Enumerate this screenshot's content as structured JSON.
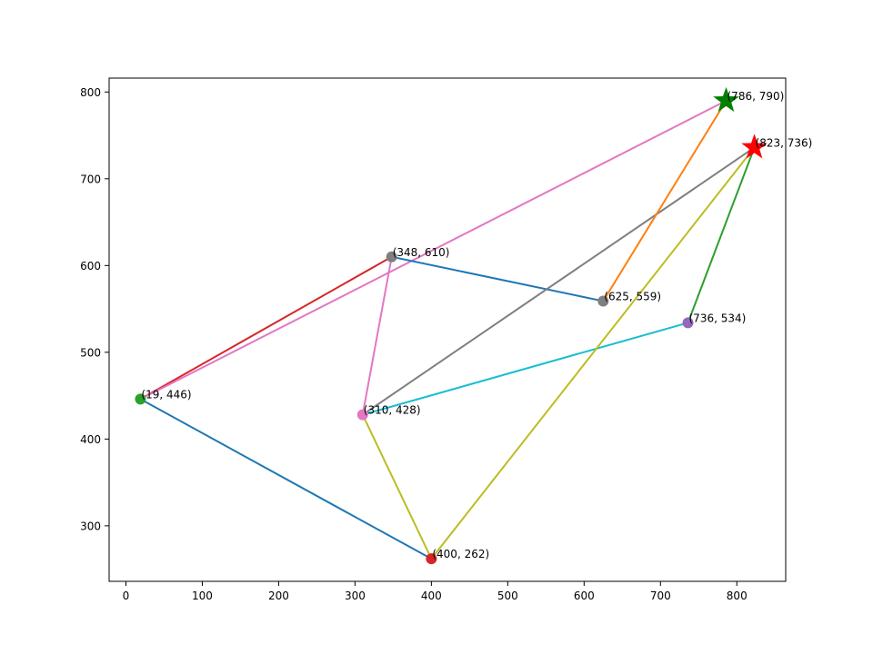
{
  "chart_data": {
    "type": "scatter",
    "title": "",
    "xlabel": "",
    "ylabel": "",
    "xlim": [
      -22,
      864
    ],
    "ylim": [
      236,
      816
    ],
    "xticks": [
      0,
      100,
      200,
      300,
      400,
      500,
      600,
      700,
      800
    ],
    "yticks": [
      300,
      400,
      500,
      600,
      700,
      800
    ],
    "grid": false,
    "points": [
      {
        "label": "(19, 446)",
        "x": 19,
        "y": 446,
        "color": "#2ca02c"
      },
      {
        "label": "(400, 262)",
        "x": 400,
        "y": 262,
        "color": "#d62728"
      },
      {
        "label": "(310, 428)",
        "x": 310,
        "y": 428,
        "color": "#e377c2"
      },
      {
        "label": "(348, 610)",
        "x": 348,
        "y": 610,
        "color": "#7f7f7f"
      },
      {
        "label": "(625, 559)",
        "x": 625,
        "y": 559,
        "color": "#7f7f7f"
      },
      {
        "label": "(736, 534)",
        "x": 736,
        "y": 534,
        "color": "#9467bd"
      },
      {
        "label": "(786, 790)",
        "x": 786,
        "y": 790,
        "color": "#ff7f0e"
      },
      {
        "label": "(823, 736)",
        "x": 823,
        "y": 736,
        "color": "#2ca02c"
      }
    ],
    "segments": [
      {
        "from": [
          19,
          446
        ],
        "to": [
          400,
          262
        ],
        "color": "#1f77b4"
      },
      {
        "from": [
          19,
          446
        ],
        "to": [
          348,
          610
        ],
        "color": "#d62728"
      },
      {
        "from": [
          19,
          446
        ],
        "to": [
          786,
          790
        ],
        "color": "#e377c2"
      },
      {
        "from": [
          348,
          610
        ],
        "to": [
          625,
          559
        ],
        "color": "#1f77b4"
      },
      {
        "from": [
          348,
          610
        ],
        "to": [
          310,
          428
        ],
        "color": "#e377c2"
      },
      {
        "from": [
          310,
          428
        ],
        "to": [
          823,
          736
        ],
        "color": "#7f7f7f"
      },
      {
        "from": [
          310,
          428
        ],
        "to": [
          736,
          534
        ],
        "color": "#17becf"
      },
      {
        "from": [
          310,
          428
        ],
        "to": [
          400,
          262
        ],
        "color": "#bcbd22"
      },
      {
        "from": [
          400,
          262
        ],
        "to": [
          823,
          736
        ],
        "color": "#bcbd22"
      },
      {
        "from": [
          625,
          559
        ],
        "to": [
          786,
          790
        ],
        "color": "#ff7f0e"
      },
      {
        "from": [
          736,
          534
        ],
        "to": [
          823,
          736
        ],
        "color": "#2ca02c"
      }
    ],
    "stars": [
      {
        "x": 786,
        "y": 790,
        "color": "#008000"
      },
      {
        "x": 823,
        "y": 736,
        "color": "#ff0000"
      }
    ]
  }
}
